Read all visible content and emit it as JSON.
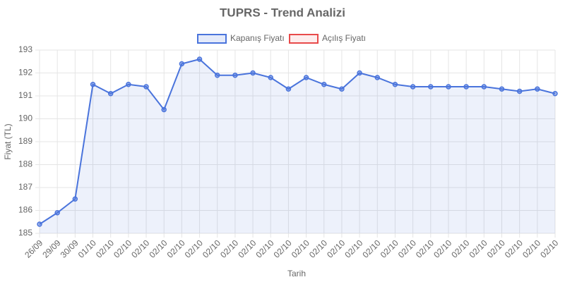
{
  "chart_data": {
    "type": "line",
    "title": "TUPRS - Trend Analizi",
    "x_label": "Tarih",
    "y_label": "Fiyat (TL)",
    "categories": [
      "26/09",
      "29/09",
      "30/09",
      "01/10",
      "02/10",
      "02/10",
      "02/10",
      "02/10",
      "02/10",
      "02/10",
      "02/10",
      "02/10",
      "02/10",
      "02/10",
      "02/10",
      "02/10",
      "02/10",
      "02/10",
      "02/10",
      "02/10",
      "02/10",
      "02/10",
      "02/10",
      "02/10",
      "02/10",
      "02/10",
      "02/10",
      "02/10",
      "02/10",
      "02/10"
    ],
    "series": [
      {
        "name": "Kapanış Fiyatı",
        "color": "#4a74dc",
        "fill": true,
        "values": [
          185.4,
          185.9,
          186.5,
          191.5,
          191.1,
          191.5,
          191.4,
          190.4,
          192.4,
          192.6,
          191.9,
          191.9,
          192.0,
          191.8,
          191.3,
          191.8,
          191.5,
          191.3,
          192.0,
          191.8,
          191.5,
          191.4,
          191.4,
          191.4,
          191.4,
          191.4,
          191.3,
          191.2,
          191.3,
          191.1
        ]
      },
      {
        "name": "Açılış Fiyatı",
        "color": "#e84a4a",
        "fill": false,
        "values": [
          null,
          null,
          null,
          null,
          null,
          null,
          null,
          null,
          null,
          null,
          null,
          null,
          null,
          null,
          null,
          null,
          null,
          null,
          null,
          null,
          null,
          null,
          null,
          null,
          null,
          null,
          null,
          null,
          null,
          null
        ]
      }
    ],
    "ylim": [
      185,
      193
    ],
    "yticks": [
      185,
      186,
      187,
      188,
      189,
      190,
      191,
      192,
      193
    ],
    "grid": true,
    "legend": "top"
  }
}
